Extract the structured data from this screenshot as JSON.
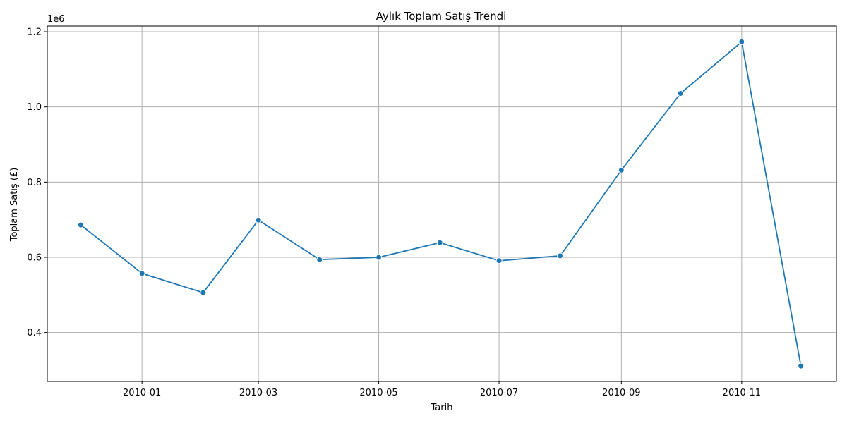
{
  "chart_data": {
    "type": "line",
    "title": "Aylık Toplam Satış Trendi",
    "xlabel": "Tarih",
    "ylabel": "Toplam Satış (£)",
    "y_offset_label": "1e6",
    "y_multiplier": 1000000,
    "grid": true,
    "line_color": "#1f77b4",
    "x_ticks": [
      "2010-01",
      "2010-03",
      "2010-05",
      "2010-07",
      "2010-09",
      "2010-11"
    ],
    "y_ticks": [
      0.4,
      0.6,
      0.8,
      1.0,
      1.2
    ],
    "y_tick_labels": [
      "0.4",
      "0.6",
      "0.8",
      "1.0",
      "1.2"
    ],
    "xlim": [
      "2009-11-14",
      "2010-12-19"
    ],
    "ylim": [
      0.27,
      1.215
    ],
    "series": [
      {
        "x": [
          "2009-12-01",
          "2010-01-01",
          "2010-02-01",
          "2010-03-01",
          "2010-04-01",
          "2010-05-01",
          "2010-06-01",
          "2010-07-01",
          "2010-08-01",
          "2010-09-01",
          "2010-10-01",
          "2010-11-01",
          "2010-12-01"
        ],
        "y": [
          0.686,
          0.557,
          0.506,
          0.699,
          0.594,
          0.6,
          0.639,
          0.591,
          0.604,
          0.832,
          1.036,
          1.173,
          0.311
        ]
      }
    ]
  }
}
